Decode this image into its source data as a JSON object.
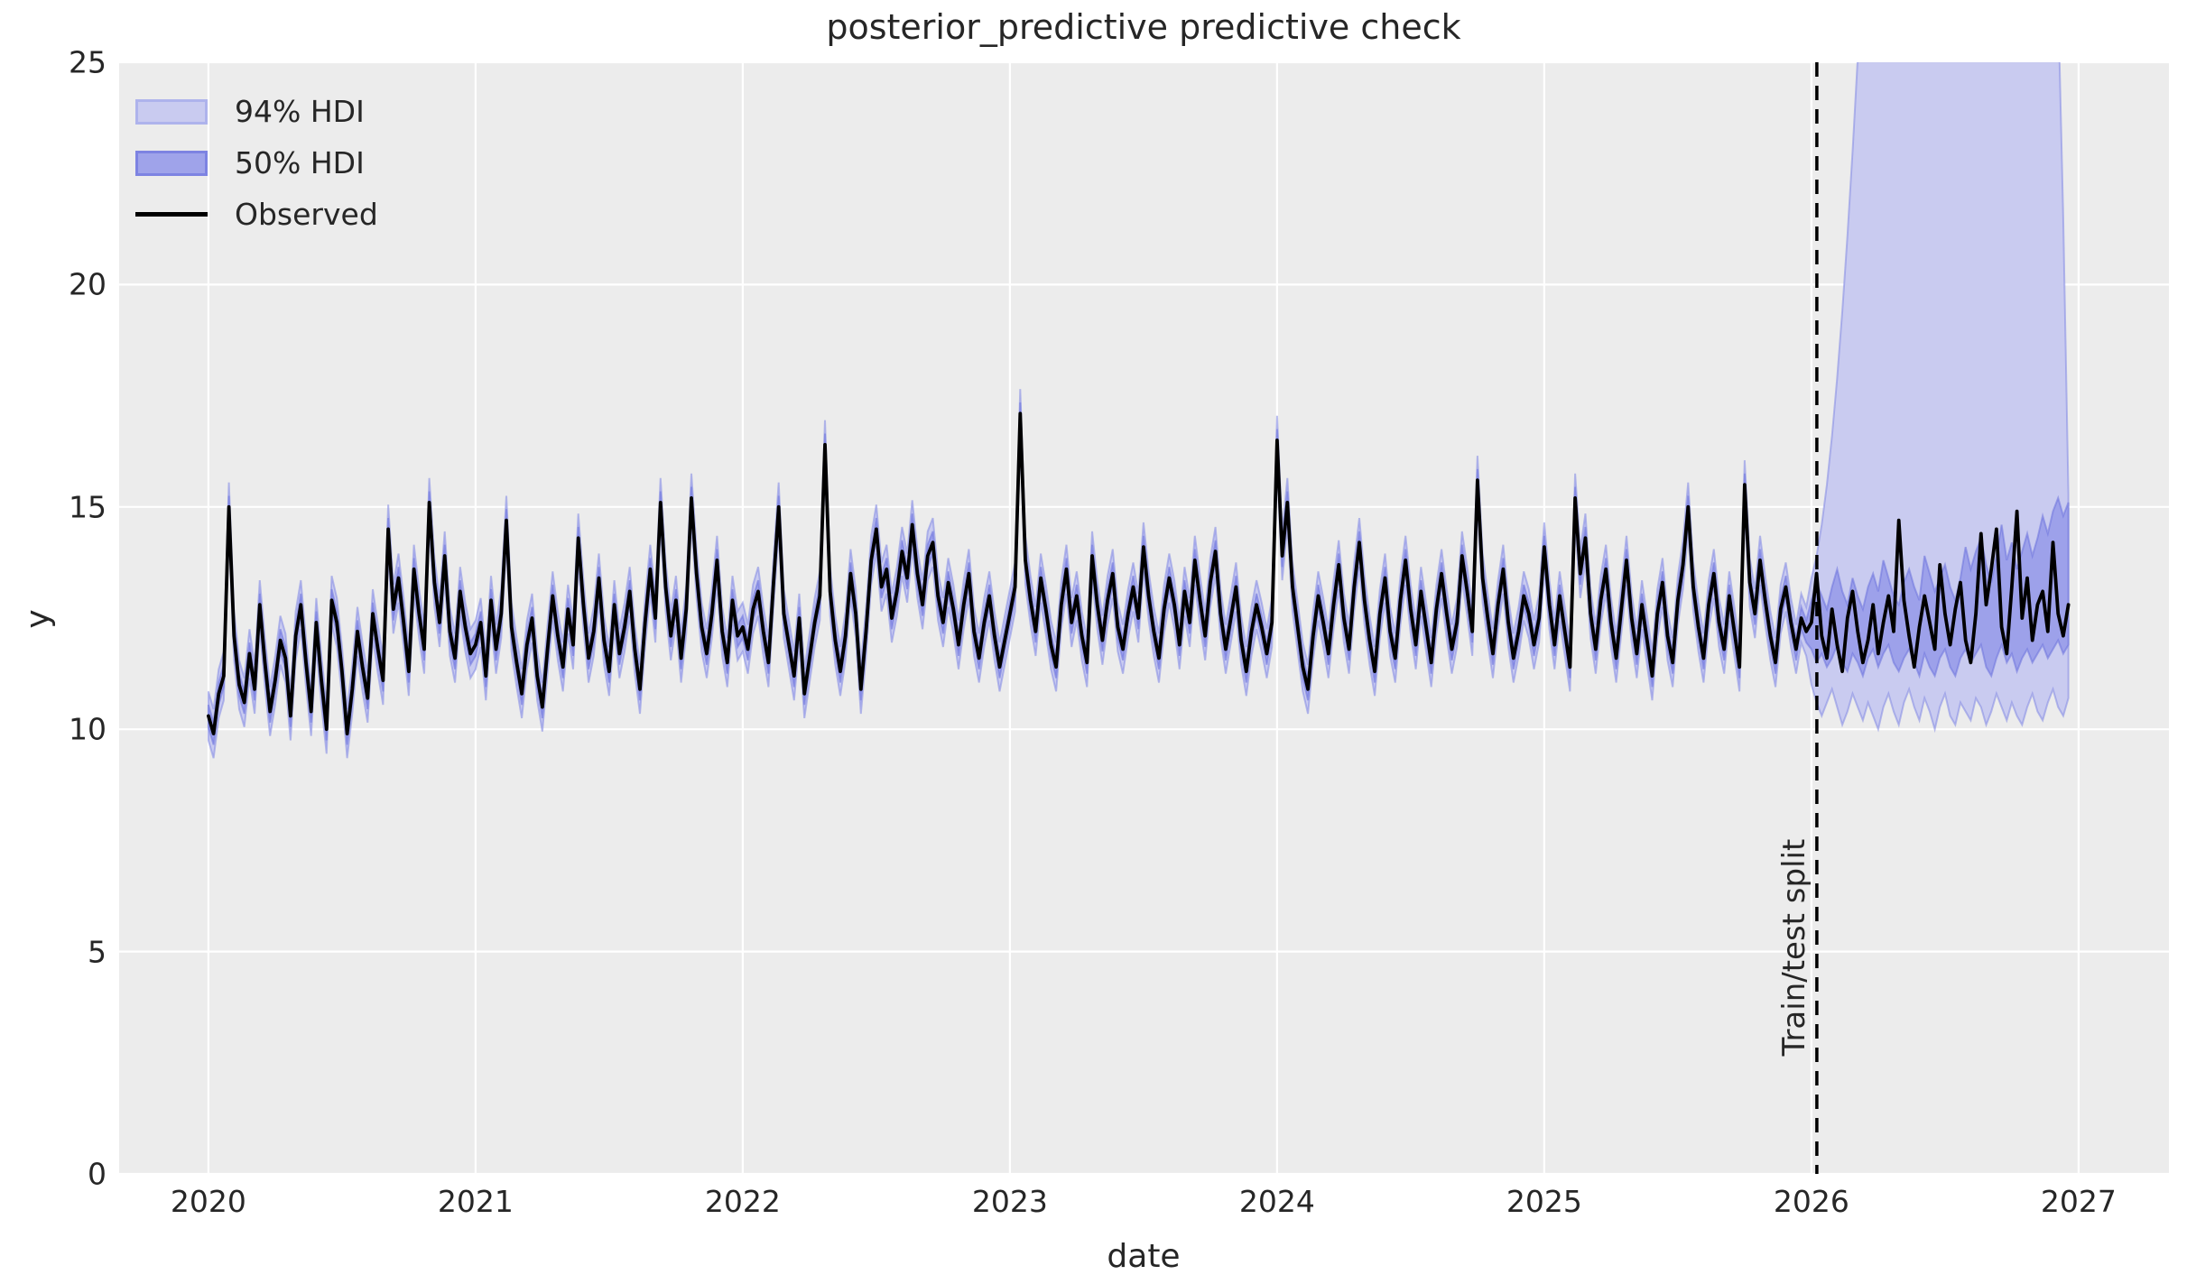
{
  "chart_data": {
    "type": "line",
    "title": "posterior_predictive predictive check",
    "xlabel": "date",
    "ylabel": "y",
    "xlim": [
      2019.666,
      2027.338
    ],
    "ylim": [
      0,
      25
    ],
    "xticks": [
      2020,
      2021,
      2022,
      2023,
      2024,
      2025,
      2026,
      2027
    ],
    "yticks": [
      0,
      5,
      10,
      15,
      20,
      25
    ],
    "grid": true,
    "legend": {
      "position": "upper-left",
      "items": [
        {
          "label": "94% HDI",
          "color": "#c9cbf0"
        },
        {
          "label": "50% HDI",
          "color": "#9fa3ea"
        },
        {
          "label": "Observed",
          "color": "#000000"
        }
      ]
    },
    "split": {
      "x": 2026.02,
      "label": "Train/test split"
    },
    "colors": {
      "figure_bg": "#ffffff",
      "axes_bg": "#ececec",
      "grid": "#ffffff",
      "hdi94_fill": "#c9cbf0",
      "hdi94_edge": "#8289e4",
      "hdi50_fill": "#9da1ea",
      "hdi50_edge": "#6b72dd",
      "observed": "#000000",
      "split_line": "#000000",
      "text": "#262626"
    },
    "series": {
      "x_start": 2020.0,
      "x_step_years": 0.0192307692,
      "train_end_index": 312,
      "hdi94_halfwidth": 0.55,
      "hdi50_halfwidth": 0.25,
      "observed": [
        10.3,
        9.9,
        10.8,
        11.2,
        15.0,
        12.1,
        11.0,
        10.6,
        11.7,
        10.9,
        12.8,
        11.5,
        10.4,
        11.1,
        12.0,
        11.6,
        10.3,
        12.1,
        12.8,
        11.5,
        10.4,
        12.4,
        11.1,
        10.0,
        12.9,
        12.4,
        11.3,
        9.9,
        10.9,
        12.2,
        11.4,
        10.7,
        12.6,
        11.8,
        11.1,
        14.5,
        12.7,
        13.4,
        12.4,
        11.3,
        13.6,
        12.6,
        11.8,
        15.1,
        13.3,
        12.4,
        13.9,
        12.2,
        11.6,
        13.1,
        12.3,
        11.7,
        11.9,
        12.4,
        11.2,
        12.9,
        11.8,
        12.6,
        14.7,
        12.3,
        11.5,
        10.8,
        11.9,
        12.5,
        11.2,
        10.5,
        11.8,
        13.0,
        12.1,
        11.4,
        12.7,
        11.9,
        14.3,
        12.8,
        11.6,
        12.2,
        13.4,
        12.0,
        11.3,
        12.8,
        11.7,
        12.3,
        13.1,
        11.8,
        10.9,
        12.4,
        13.6,
        12.5,
        15.1,
        13.2,
        12.1,
        12.9,
        11.6,
        12.7,
        15.2,
        13.5,
        12.3,
        11.7,
        12.6,
        13.8,
        12.2,
        11.5,
        12.9,
        12.1,
        12.3,
        11.8,
        12.7,
        13.1,
        12.2,
        11.5,
        13.3,
        15.0,
        12.6,
        11.9,
        11.2,
        12.5,
        10.8,
        11.6,
        12.4,
        13.0,
        16.4,
        13.1,
        12.0,
        11.3,
        12.1,
        13.5,
        12.6,
        10.9,
        12.2,
        13.8,
        14.5,
        13.2,
        13.6,
        12.5,
        13.1,
        14.0,
        13.4,
        14.6,
        13.5,
        12.8,
        13.9,
        14.2,
        13.0,
        12.4,
        13.3,
        12.7,
        11.9,
        12.8,
        13.5,
        12.2,
        11.6,
        12.4,
        13.0,
        12.1,
        11.4,
        12.0,
        12.6,
        13.2,
        17.1,
        13.8,
        12.9,
        12.2,
        13.4,
        12.7,
        11.9,
        11.4,
        12.8,
        13.6,
        12.4,
        13.0,
        12.1,
        11.5,
        13.9,
        12.8,
        12.0,
        12.9,
        13.5,
        12.3,
        11.8,
        12.6,
        13.2,
        12.5,
        14.1,
        13.0,
        12.2,
        11.6,
        12.7,
        13.4,
        12.8,
        11.9,
        13.1,
        12.4,
        13.8,
        12.9,
        12.1,
        13.3,
        14.0,
        12.6,
        11.8,
        12.5,
        13.2,
        12.0,
        11.3,
        12.2,
        12.8,
        12.3,
        11.7,
        12.4,
        16.5,
        13.9,
        15.1,
        13.2,
        12.3,
        11.4,
        10.9,
        12.1,
        13.0,
        12.4,
        11.7,
        12.8,
        13.7,
        12.5,
        11.8,
        13.2,
        14.2,
        12.9,
        12.0,
        11.3,
        12.6,
        13.4,
        12.2,
        11.6,
        12.9,
        13.8,
        12.7,
        11.9,
        13.1,
        12.3,
        11.5,
        12.7,
        13.5,
        12.6,
        11.8,
        12.4,
        13.9,
        13.1,
        12.2,
        15.6,
        13.4,
        12.5,
        11.7,
        12.8,
        13.6,
        12.4,
        11.6,
        12.2,
        13.0,
        12.6,
        11.9,
        12.5,
        14.1,
        12.8,
        11.9,
        13.0,
        12.2,
        11.4,
        15.2,
        13.5,
        14.3,
        12.6,
        11.8,
        12.9,
        13.6,
        12.4,
        11.6,
        12.7,
        13.8,
        12.5,
        11.7,
        12.8,
        12.0,
        11.2,
        12.6,
        13.3,
        12.1,
        11.5,
        12.9,
        13.7,
        15.0,
        13.2,
        12.3,
        11.6,
        12.8,
        13.5,
        12.4,
        11.8,
        13.0,
        12.2,
        11.4,
        15.5,
        13.3,
        12.6,
        13.8,
        12.9,
        12.1,
        11.5,
        12.7,
        13.2,
        12.4,
        11.8,
        12.5,
        12.2,
        12.4,
        13.5,
        12.1,
        11.6,
        12.7,
        11.9,
        11.3,
        12.5,
        13.1,
        12.2,
        11.5,
        12.0,
        12.8,
        11.7,
        12.4,
        13.0,
        12.2,
        14.7,
        12.9,
        12.1,
        11.4,
        12.3,
        13.0,
        12.4,
        11.8,
        13.7,
        12.6,
        11.9,
        12.7,
        13.3,
        12.0,
        11.5,
        12.6,
        14.4,
        12.8,
        13.6,
        14.5,
        12.3,
        11.7,
        13.2,
        14.9,
        12.5,
        13.4,
        12.0,
        12.8,
        13.1,
        12.2,
        14.2,
        12.6,
        12.1,
        12.8
      ],
      "forecast": {
        "hdi94_hi": [
          13.4,
          13.9,
          14.6,
          15.5,
          16.6,
          17.9,
          19.4,
          21.1,
          23.0,
          25.1,
          26.5,
          27.2,
          27.0,
          26.8,
          27.1,
          27.3,
          27.0,
          26.8,
          27.2,
          27.0,
          26.9,
          27.1,
          27.2,
          26.9,
          27.0,
          27.2,
          26.8,
          27.0,
          27.1,
          26.9,
          27.2,
          27.0,
          26.8,
          27.1,
          27.0,
          26.9,
          27.2,
          27.0,
          26.8,
          27.1,
          27.2,
          26.9,
          27.0,
          27.1,
          26.9,
          27.2,
          27.0,
          26.8,
          26.4,
          21.5,
          15.3
        ],
        "hdi94_lo": [
          11.0,
          10.6,
          10.3,
          10.6,
          10.9,
          10.5,
          10.1,
          10.4,
          10.8,
          10.5,
          10.2,
          10.6,
          10.3,
          10.0,
          10.5,
          10.8,
          10.4,
          10.1,
          10.6,
          10.9,
          10.5,
          10.2,
          10.7,
          10.4,
          10.0,
          10.5,
          10.8,
          10.3,
          10.1,
          10.6,
          10.4,
          10.2,
          10.7,
          10.5,
          10.1,
          10.4,
          10.8,
          10.5,
          10.2,
          10.6,
          10.3,
          10.1,
          10.5,
          10.8,
          10.4,
          10.2,
          10.6,
          10.9,
          10.5,
          10.3,
          10.7
        ],
        "hdi50_hi": [
          12.9,
          13.3,
          13.0,
          12.7,
          13.2,
          13.6,
          13.1,
          12.8,
          13.4,
          13.0,
          12.7,
          13.2,
          13.5,
          13.1,
          13.8,
          13.4,
          13.0,
          12.8,
          13.3,
          13.6,
          13.2,
          12.9,
          13.9,
          13.5,
          13.1,
          13.4,
          13.7,
          13.2,
          12.9,
          13.4,
          14.1,
          13.6,
          14.0,
          14.3,
          13.7,
          13.3,
          13.9,
          14.6,
          13.8,
          14.2,
          13.6,
          14.0,
          14.4,
          13.9,
          14.3,
          14.8,
          14.4,
          14.9,
          15.2,
          14.8,
          15.1
        ],
        "hdi50_lo": [
          11.8,
          11.5,
          11.7,
          11.4,
          11.6,
          11.9,
          11.5,
          11.3,
          11.7,
          11.5,
          11.2,
          11.6,
          11.8,
          11.4,
          11.7,
          11.9,
          11.5,
          11.3,
          11.6,
          11.8,
          11.5,
          11.2,
          11.7,
          11.4,
          11.2,
          11.6,
          11.8,
          11.4,
          11.2,
          11.6,
          11.8,
          11.5,
          11.7,
          11.9,
          11.4,
          11.2,
          11.6,
          11.9,
          11.5,
          11.7,
          11.3,
          11.6,
          11.8,
          11.5,
          11.7,
          11.9,
          11.6,
          11.8,
          12.0,
          11.7,
          11.9
        ]
      }
    }
  }
}
